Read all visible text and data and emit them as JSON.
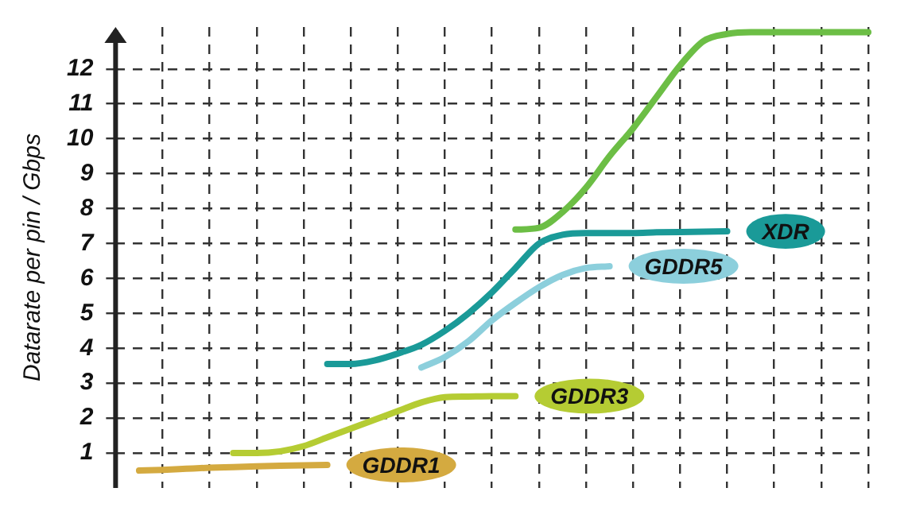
{
  "chart_data": {
    "type": "line",
    "ylabel": "Datarate per pin / Gbps",
    "categories": [
      null,
      null,
      null,
      null,
      null,
      null,
      null,
      null,
      null,
      null,
      null,
      null,
      null,
      null,
      null,
      null,
      null,
      null,
      null,
      null,
      null,
      null,
      null,
      null,
      null,
      null,
      null,
      null,
      null,
      null,
      null,
      null,
      null
    ],
    "series": [
      {
        "name": "GDDR1",
        "color": "#d4aa40",
        "values": [
          null,
          0.5,
          0.52,
          0.55,
          0.58,
          0.6,
          0.62,
          0.64,
          0.65,
          0.66,
          null,
          null,
          null,
          null,
          null,
          null,
          null,
          null,
          null,
          null,
          null,
          null,
          null,
          null,
          null,
          null,
          null,
          null,
          null,
          null,
          null,
          null,
          null
        ]
      },
      {
        "name": "GDDR3",
        "color": "#b5cc33",
        "values": [
          null,
          null,
          null,
          null,
          null,
          1.0,
          1.0,
          1.05,
          1.2,
          1.45,
          1.7,
          1.95,
          2.2,
          2.45,
          2.6,
          2.62,
          2.63,
          2.63,
          null,
          null,
          null,
          null,
          null,
          null,
          null,
          null,
          null,
          null,
          null,
          null,
          null,
          null,
          null
        ]
      },
      {
        "name": "XDR",
        "color": "#1a9a98",
        "values": [
          null,
          null,
          null,
          null,
          null,
          null,
          null,
          null,
          null,
          3.55,
          3.55,
          3.65,
          3.85,
          4.1,
          4.5,
          5.0,
          5.6,
          6.3,
          7.0,
          7.25,
          7.3,
          7.3,
          7.3,
          7.32,
          7.33,
          7.34,
          7.35,
          null,
          null,
          null,
          null,
          null,
          null
        ]
      },
      {
        "name": "GDDR5",
        "color": "#8ccfdc",
        "values": [
          null,
          null,
          null,
          null,
          null,
          null,
          null,
          null,
          null,
          null,
          null,
          null,
          null,
          3.45,
          3.75,
          4.2,
          4.8,
          5.3,
          5.75,
          6.1,
          6.3,
          6.35,
          null,
          null,
          null,
          null,
          null,
          null,
          null,
          null,
          null,
          null,
          null
        ]
      },
      {
        "color": "#6cbe45",
        "values": [
          null,
          null,
          null,
          null,
          null,
          null,
          null,
          null,
          null,
          null,
          null,
          null,
          null,
          null,
          null,
          null,
          null,
          7.4,
          7.45,
          7.9,
          8.6,
          9.5,
          10.3,
          11.2,
          12.1,
          12.8,
          13.0,
          13.05,
          13.05,
          13.05,
          13.05,
          13.05,
          13.05
        ]
      }
    ],
    "ylim": [
      0,
      13.2
    ],
    "yticks": [
      1,
      2,
      3,
      4,
      5,
      6,
      7,
      8,
      9,
      10,
      11,
      12
    ],
    "grid": true,
    "tick_labels": "y",
    "marker": "none",
    "line_style": "solid",
    "legend": false
  }
}
